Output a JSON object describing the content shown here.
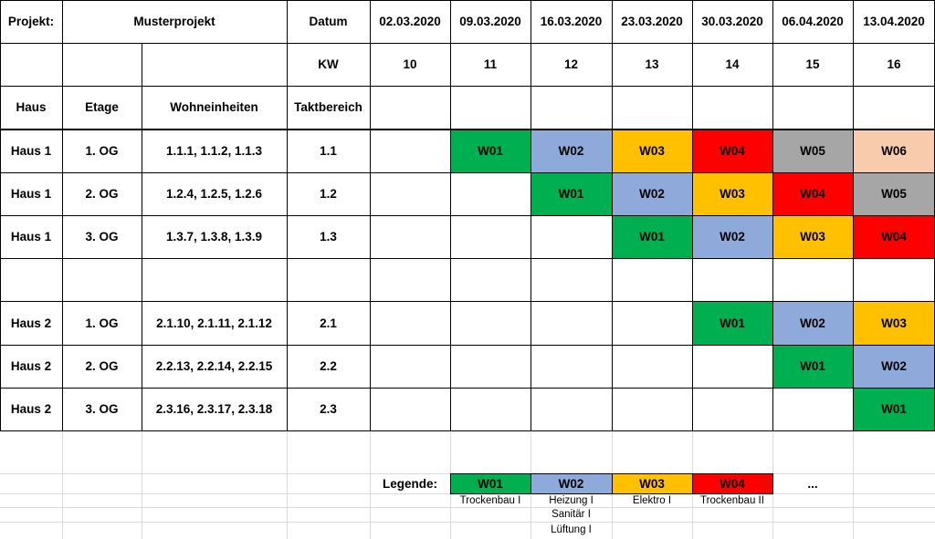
{
  "header": {
    "projekt_label": "Projekt:",
    "projekt_name": "Musterprojekt",
    "datum_label": "Datum",
    "kw_label": "KW",
    "dates": [
      "02.03.2020",
      "09.03.2020",
      "16.03.2020",
      "23.03.2020",
      "30.03.2020",
      "06.04.2020",
      "13.04.2020"
    ],
    "kws": [
      "10",
      "11",
      "12",
      "13",
      "14",
      "15",
      "16"
    ]
  },
  "columns": {
    "haus": "Haus",
    "etage": "Etage",
    "wohneinheiten": "Wohneinheiten",
    "taktbereich": "Taktbereich"
  },
  "colors": {
    "W01": "#00b050",
    "W02": "#8eaadb",
    "W03": "#ffc000",
    "W04": "#ff0000",
    "W05": "#a6a6a6",
    "W06": "#f8cbad"
  },
  "rows": [
    {
      "haus": "Haus 1",
      "etage": "1. OG",
      "we": "1.1.1, 1.1.2, 1.1.3",
      "takt": "1.1",
      "cells": [
        "",
        "W01",
        "W02",
        "W03",
        "W04",
        "W05",
        "W06"
      ]
    },
    {
      "haus": "Haus 1",
      "etage": "2. OG",
      "we": "1.2.4, 1.2.5, 1.2.6",
      "takt": "1.2",
      "cells": [
        "",
        "",
        "W01",
        "W02",
        "W03",
        "W04",
        "W05"
      ]
    },
    {
      "haus": "Haus 1",
      "etage": "3. OG",
      "we": "1.3.7, 1.3.8, 1.3.9",
      "takt": "1.3",
      "cells": [
        "",
        "",
        "",
        "W01",
        "W02",
        "W03",
        "W04"
      ]
    },
    {
      "haus": "",
      "etage": "",
      "we": "",
      "takt": "",
      "cells": [
        "",
        "",
        "",
        "",
        "",
        "",
        ""
      ]
    },
    {
      "haus": "Haus 2",
      "etage": "1. OG",
      "we": "2.1.10, 2.1.11, 2.1.12",
      "takt": "2.1",
      "cells": [
        "",
        "",
        "",
        "",
        "W01",
        "W02",
        "W03"
      ]
    },
    {
      "haus": "Haus 2",
      "etage": "2. OG",
      "we": "2.2.13, 2.2.14, 2.2.15",
      "takt": "2.2",
      "cells": [
        "",
        "",
        "",
        "",
        "",
        "W01",
        "W02"
      ]
    },
    {
      "haus": "Haus 2",
      "etage": "3. OG",
      "we": "2.3.16, 2.3.17, 2.3.18",
      "takt": "2.3",
      "cells": [
        "",
        "",
        "",
        "",
        "",
        "",
        "W01"
      ]
    }
  ],
  "legend": {
    "label": "Legende:",
    "items": [
      {
        "code": "W01",
        "desc": [
          "Trockenbau I"
        ]
      },
      {
        "code": "W02",
        "desc": [
          "Heizung I",
          "Sanitär I",
          "Lüftung I"
        ]
      },
      {
        "code": "W03",
        "desc": [
          "Elektro I"
        ]
      },
      {
        "code": "W04",
        "desc": [
          "Trockenbau II"
        ]
      }
    ],
    "more": "..."
  }
}
